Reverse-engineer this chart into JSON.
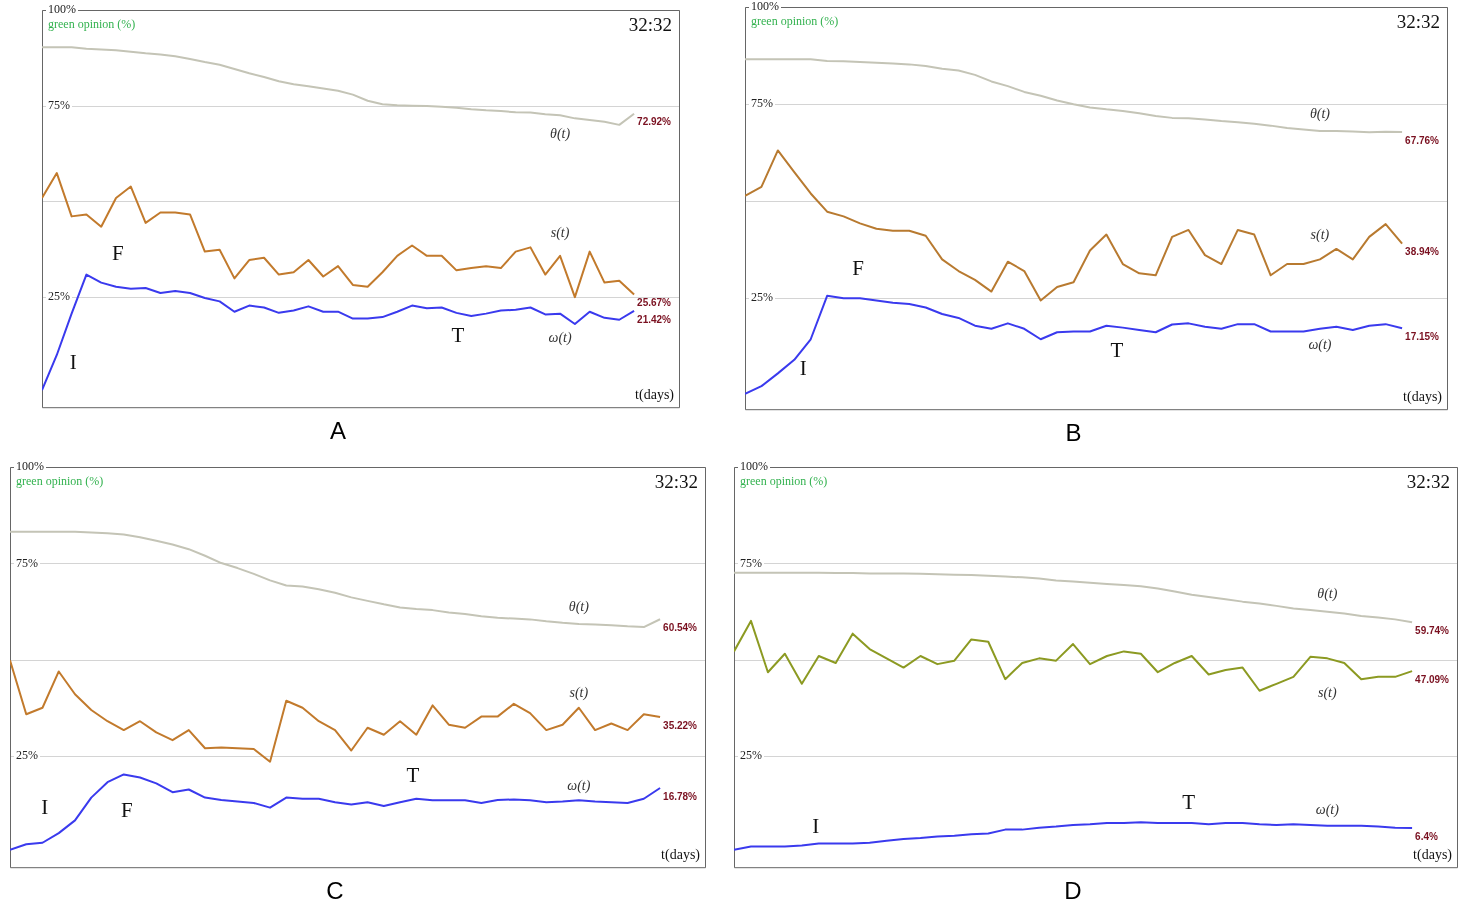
{
  "chart_data": [
    {
      "type": "line",
      "title": "A",
      "xlabel": "t(days)",
      "ylabel": "green opinion (%)",
      "tick_labels": "y",
      "grid": "y",
      "marker": "none",
      "ylim": [
        -4,
        100
      ],
      "yticks": [
        {
          "value": 100,
          "label": "100%"
        },
        {
          "value": 75,
          "label": "75%"
        },
        {
          "value": 50,
          "label": null
        },
        {
          "value": 25,
          "label": "25%"
        }
      ],
      "annotations": [
        "32:32",
        "I",
        "F",
        "T"
      ],
      "categories": [
        null,
        null,
        null,
        null,
        null,
        null,
        null,
        null,
        null,
        null,
        null,
        null,
        null,
        null,
        null,
        null,
        null,
        null,
        null,
        null,
        null,
        null,
        null,
        null,
        null,
        null,
        null,
        null,
        null,
        null,
        null,
        null,
        null,
        null,
        null,
        null,
        null,
        null,
        null,
        null,
        null
      ],
      "series": [
        {
          "name": "θ(t)",
          "color": "#c4c4b6",
          "values": [
            90.3,
            90.3,
            90.3,
            89.9,
            89.7,
            89.5,
            89.1,
            88.7,
            88.4,
            87.9,
            87.2,
            86.4,
            85.7,
            84.6,
            83.5,
            82.5,
            81.4,
            80.6,
            80.1,
            79.5,
            78.9,
            77.9,
            76.3,
            75.4,
            75.1,
            75,
            74.9,
            74.7,
            74.5,
            74.1,
            73.8,
            73.6,
            73.3,
            73.2,
            72.8,
            72.5,
            71.7,
            71.3,
            70.8,
            70,
            72.92
          ],
          "value_labels": [
            null,
            null,
            null,
            null,
            null,
            null,
            null,
            null,
            null,
            null,
            null,
            null,
            null,
            null,
            null,
            null,
            null,
            null,
            null,
            null,
            null,
            null,
            null,
            null,
            null,
            null,
            null,
            null,
            null,
            null,
            null,
            null,
            null,
            null,
            null,
            null,
            null,
            null,
            null,
            null,
            "72.92%"
          ]
        },
        {
          "name": "s(t)",
          "color": "#c27a2c",
          "values": [
            50.9,
            57.4,
            46.1,
            46.6,
            43.4,
            50.9,
            53.9,
            44.4,
            47.1,
            47.1,
            46.6,
            36.9,
            37.4,
            29.9,
            34.7,
            35.3,
            30.9,
            31.5,
            34.7,
            30.4,
            33.1,
            28.2,
            27.7,
            31.5,
            35.8,
            38.5,
            35.8,
            35.8,
            32,
            32.6,
            33.1,
            32.6,
            36.9,
            38,
            30.9,
            35.8,
            25,
            36.9,
            28.8,
            29.3,
            25.67
          ],
          "value_labels": [
            null,
            null,
            null,
            null,
            null,
            null,
            null,
            null,
            null,
            null,
            null,
            null,
            null,
            null,
            null,
            null,
            null,
            null,
            null,
            null,
            null,
            null,
            null,
            null,
            null,
            null,
            null,
            null,
            null,
            null,
            null,
            null,
            null,
            null,
            null,
            null,
            null,
            null,
            null,
            null,
            "25.67%"
          ]
        },
        {
          "name": "ω(t)",
          "color": "#3a3aee",
          "values": [
            0.7,
            9.9,
            20.7,
            30.9,
            28.8,
            27.7,
            27.2,
            27.4,
            26.1,
            26.6,
            26.1,
            24.8,
            23.9,
            21.2,
            22.8,
            22.3,
            20.9,
            21.5,
            22.6,
            21.2,
            21.2,
            19.4,
            19.4,
            19.8,
            21.2,
            22.8,
            22.1,
            22.3,
            20.9,
            20.1,
            20.7,
            21.5,
            21.7,
            22.3,
            20.5,
            20.7,
            18,
            21.2,
            19.6,
            19.1,
            21.42
          ],
          "value_labels": [
            null,
            null,
            null,
            null,
            null,
            null,
            null,
            null,
            null,
            null,
            null,
            null,
            null,
            null,
            null,
            null,
            null,
            null,
            null,
            null,
            null,
            null,
            null,
            null,
            null,
            null,
            null,
            null,
            null,
            null,
            null,
            null,
            null,
            null,
            null,
            null,
            null,
            null,
            null,
            null,
            "21.42%"
          ]
        }
      ]
    },
    {
      "type": "line",
      "title": "B",
      "xlabel": "t(days)",
      "ylabel": "green opinion (%)",
      "tick_labels": "y",
      "grid": "y",
      "marker": "none",
      "ylim": [
        -4,
        100
      ],
      "yticks": [
        {
          "value": 100,
          "label": "100%"
        },
        {
          "value": 75,
          "label": "75%"
        },
        {
          "value": 50,
          "label": null
        },
        {
          "value": 25,
          "label": "25%"
        }
      ],
      "annotations": [
        "32:32",
        "I",
        "F",
        "T"
      ],
      "categories": [
        null,
        null,
        null,
        null,
        null,
        null,
        null,
        null,
        null,
        null,
        null,
        null,
        null,
        null,
        null,
        null,
        null,
        null,
        null,
        null,
        null,
        null,
        null,
        null,
        null,
        null,
        null,
        null,
        null,
        null,
        null,
        null,
        null,
        null,
        null,
        null,
        null,
        null,
        null,
        null,
        null
      ],
      "series": [
        {
          "name": "θ(t)",
          "color": "#c4c4b6",
          "values": [
            86.5,
            86.5,
            86.5,
            86.5,
            86.5,
            86.1,
            86,
            85.8,
            85.6,
            85.4,
            85.2,
            84.8,
            84.1,
            83.6,
            82.5,
            80.8,
            79.6,
            78.1,
            77.1,
            75.9,
            74.9,
            74.1,
            73.6,
            73.2,
            72.6,
            71.9,
            71.4,
            71.3,
            71,
            70.6,
            70.3,
            69.9,
            69.4,
            68.8,
            68.4,
            68,
            68,
            67.9,
            67.7,
            67.8,
            67.76
          ],
          "value_labels": [
            null,
            null,
            null,
            null,
            null,
            null,
            null,
            null,
            null,
            null,
            null,
            null,
            null,
            null,
            null,
            null,
            null,
            null,
            null,
            null,
            null,
            null,
            null,
            null,
            null,
            null,
            null,
            null,
            null,
            null,
            null,
            null,
            null,
            null,
            null,
            null,
            null,
            null,
            null,
            null,
            "67.76%"
          ]
        },
        {
          "name": "s(t)",
          "color": "#b87a30",
          "values": [
            51.3,
            53.6,
            63,
            57.4,
            51.9,
            47.2,
            46,
            44.2,
            42.8,
            42.3,
            42.3,
            41,
            34.9,
            31.9,
            29.6,
            26.6,
            34.3,
            31.9,
            24.3,
            27.8,
            29,
            37.2,
            41.3,
            33.7,
            31.3,
            30.8,
            40.7,
            42.5,
            36,
            33.7,
            42.5,
            41.3,
            30.8,
            33.7,
            33.7,
            34.9,
            37.6,
            34.9,
            40.7,
            44,
            38.94
          ],
          "value_labels": [
            null,
            null,
            null,
            null,
            null,
            null,
            null,
            null,
            null,
            null,
            null,
            null,
            null,
            null,
            null,
            null,
            null,
            null,
            null,
            null,
            null,
            null,
            null,
            null,
            null,
            null,
            null,
            null,
            null,
            null,
            null,
            null,
            null,
            null,
            null,
            null,
            null,
            null,
            null,
            null,
            "38.94%"
          ]
        },
        {
          "name": "ω(t)",
          "color": "#3a3aee",
          "values": [
            0.2,
            2.2,
            5.5,
            9,
            14.3,
            25.5,
            24.9,
            24.9,
            24.3,
            23.7,
            23.4,
            22.5,
            20.8,
            19.8,
            17.8,
            17,
            18.4,
            17,
            14.3,
            16.1,
            16.3,
            16.3,
            17.8,
            17.3,
            16.7,
            16.1,
            18.1,
            18.4,
            17.5,
            17,
            18.2,
            18.2,
            16.3,
            16.3,
            16.3,
            17,
            17.5,
            16.7,
            17.8,
            18.2,
            17.15
          ],
          "value_labels": [
            null,
            null,
            null,
            null,
            null,
            null,
            null,
            null,
            null,
            null,
            null,
            null,
            null,
            null,
            null,
            null,
            null,
            null,
            null,
            null,
            null,
            null,
            null,
            null,
            null,
            null,
            null,
            null,
            null,
            null,
            null,
            null,
            null,
            null,
            null,
            null,
            null,
            null,
            null,
            null,
            "17.15%"
          ]
        }
      ]
    },
    {
      "type": "line",
      "title": "C",
      "xlabel": "t(days)",
      "ylabel": "green opinion (%)",
      "tick_labels": "y",
      "grid": "y",
      "marker": "none",
      "ylim": [
        -4,
        100
      ],
      "yticks": [
        {
          "value": 100,
          "label": "100%"
        },
        {
          "value": 75,
          "label": "75%"
        },
        {
          "value": 50,
          "label": null
        },
        {
          "value": 25,
          "label": "25%"
        }
      ],
      "annotations": [
        "32:32",
        "I",
        "F",
        "T"
      ],
      "categories": [
        null,
        null,
        null,
        null,
        null,
        null,
        null,
        null,
        null,
        null,
        null,
        null,
        null,
        null,
        null,
        null,
        null,
        null,
        null,
        null,
        null,
        null,
        null,
        null,
        null,
        null,
        null,
        null,
        null,
        null,
        null,
        null,
        null,
        null,
        null,
        null,
        null,
        null,
        null,
        null,
        null
      ],
      "series": [
        {
          "name": "θ(t)",
          "color": "#c4c4b6",
          "values": [
            83.2,
            83.2,
            83.2,
            83.2,
            83.2,
            83,
            82.8,
            82.5,
            81.8,
            80.9,
            79.9,
            78.7,
            77,
            75.1,
            73.8,
            72.3,
            70.6,
            69.3,
            69,
            68.3,
            67.4,
            66.2,
            65.3,
            64.4,
            63.6,
            63.2,
            62.9,
            62.3,
            61.9,
            61.3,
            60.9,
            60.7,
            60.5,
            60,
            59.6,
            59.3,
            59.2,
            59,
            58.7,
            58.5,
            60.54
          ],
          "value_labels": [
            null,
            null,
            null,
            null,
            null,
            null,
            null,
            null,
            null,
            null,
            null,
            null,
            null,
            null,
            null,
            null,
            null,
            null,
            null,
            null,
            null,
            null,
            null,
            null,
            null,
            null,
            null,
            null,
            null,
            null,
            null,
            null,
            null,
            null,
            null,
            null,
            null,
            null,
            null,
            null,
            "60.54%"
          ]
        },
        {
          "name": "s(t)",
          "color": "#c27a2c",
          "values": [
            49.9,
            35.9,
            37.6,
            47,
            41.1,
            37,
            34.1,
            31.8,
            34.1,
            31.2,
            29.2,
            31.8,
            27.1,
            27.3,
            27.1,
            26.9,
            23.6,
            39.4,
            37.6,
            34.1,
            31.8,
            26.5,
            32.4,
            30.6,
            34.1,
            30.6,
            38.2,
            33.2,
            32.4,
            35.3,
            35.3,
            38.6,
            36.2,
            31.8,
            33.2,
            37.6,
            31.8,
            33.5,
            31.8,
            35.9,
            35.22
          ],
          "value_labels": [
            null,
            null,
            null,
            null,
            null,
            null,
            null,
            null,
            null,
            null,
            null,
            null,
            null,
            null,
            null,
            null,
            null,
            null,
            null,
            null,
            null,
            null,
            null,
            null,
            null,
            null,
            null,
            null,
            null,
            null,
            null,
            null,
            null,
            null,
            null,
            null,
            null,
            null,
            null,
            null,
            "35.22%"
          ]
        },
        {
          "name": "ω(t)",
          "color": "#3a3aee",
          "values": [
            0.8,
            2.2,
            2.6,
            5.1,
            8.4,
            14.3,
            18.3,
            20.3,
            19.5,
            18,
            15.7,
            16.4,
            14.3,
            13.7,
            13.3,
            12.9,
            11.7,
            14.3,
            14,
            14,
            13.1,
            12.5,
            13.1,
            12.1,
            13.1,
            14,
            13.6,
            13.6,
            13.6,
            12.9,
            13.7,
            13.8,
            13.6,
            13.1,
            13.3,
            13.6,
            13.3,
            13.1,
            12.9,
            14,
            16.78
          ],
          "value_labels": [
            null,
            null,
            null,
            null,
            null,
            null,
            null,
            null,
            null,
            null,
            null,
            null,
            null,
            null,
            null,
            null,
            null,
            null,
            null,
            null,
            null,
            null,
            null,
            null,
            null,
            null,
            null,
            null,
            null,
            null,
            null,
            null,
            null,
            null,
            null,
            null,
            null,
            null,
            null,
            null,
            "16.78%"
          ]
        }
      ]
    },
    {
      "type": "line",
      "title": "D",
      "xlabel": "t(days)",
      "ylabel": "green opinion (%)",
      "tick_labels": "y",
      "grid": "y",
      "marker": "none",
      "ylim": [
        -4,
        100
      ],
      "yticks": [
        {
          "value": 100,
          "label": "100%"
        },
        {
          "value": 75,
          "label": "75%"
        },
        {
          "value": 50,
          "label": null
        },
        {
          "value": 25,
          "label": "25%"
        }
      ],
      "annotations": [
        "32:32",
        "I",
        "T"
      ],
      "categories": [
        null,
        null,
        null,
        null,
        null,
        null,
        null,
        null,
        null,
        null,
        null,
        null,
        null,
        null,
        null,
        null,
        null,
        null,
        null,
        null,
        null,
        null,
        null,
        null,
        null,
        null,
        null,
        null,
        null,
        null,
        null,
        null,
        null,
        null,
        null,
        null,
        null,
        null,
        null,
        null,
        null
      ],
      "series": [
        {
          "name": "θ(t)",
          "color": "#c4c4b6",
          "values": [
            72.6,
            72.6,
            72.6,
            72.6,
            72.6,
            72.6,
            72.5,
            72.5,
            72.4,
            72.4,
            72.4,
            72.3,
            72.2,
            72.1,
            72,
            71.8,
            71.6,
            71.4,
            71.1,
            70.6,
            70.3,
            70,
            69.7,
            69.4,
            69.1,
            68.5,
            67.7,
            66.9,
            66.3,
            65.7,
            65.1,
            64.6,
            64,
            63.3,
            62.9,
            62.5,
            62,
            61.4,
            61,
            60.5,
            59.74
          ],
          "value_labels": [
            null,
            null,
            null,
            null,
            null,
            null,
            null,
            null,
            null,
            null,
            null,
            null,
            null,
            null,
            null,
            null,
            null,
            null,
            null,
            null,
            null,
            null,
            null,
            null,
            null,
            null,
            null,
            null,
            null,
            null,
            null,
            null,
            null,
            null,
            null,
            null,
            null,
            null,
            null,
            null,
            "59.74%"
          ]
        },
        {
          "name": "s(t)",
          "color": "#8c9a22",
          "values": [
            52.2,
            60.1,
            46.8,
            51.6,
            43.8,
            51,
            49.2,
            56.8,
            52.8,
            50.4,
            48,
            51,
            48.9,
            49.8,
            55.3,
            54.7,
            45,
            49.2,
            50.4,
            49.8,
            54.1,
            48.9,
            51,
            52.2,
            51.6,
            46.8,
            49.2,
            51,
            46.2,
            47.4,
            48,
            42,
            43.8,
            45.6,
            50.8,
            50.4,
            49.2,
            45,
            45.6,
            45.6,
            47.09
          ],
          "value_labels": [
            null,
            null,
            null,
            null,
            null,
            null,
            null,
            null,
            null,
            null,
            null,
            null,
            null,
            null,
            null,
            null,
            null,
            null,
            null,
            null,
            null,
            null,
            null,
            null,
            null,
            null,
            null,
            null,
            null,
            null,
            null,
            null,
            null,
            null,
            null,
            null,
            null,
            null,
            null,
            null,
            "47.09%"
          ]
        },
        {
          "name": "ω(t)",
          "color": "#3a3aee",
          "values": [
            0.8,
            1.6,
            1.6,
            1.6,
            1.9,
            2.4,
            2.4,
            2.4,
            2.6,
            3.1,
            3.6,
            3.8,
            4.2,
            4.4,
            4.8,
            5,
            6,
            6,
            6.5,
            6.8,
            7.2,
            7.4,
            7.7,
            7.7,
            7.9,
            7.7,
            7.7,
            7.7,
            7.4,
            7.7,
            7.7,
            7.4,
            7.2,
            7.4,
            7.2,
            7,
            7,
            7,
            6.8,
            6.5,
            6.4
          ],
          "value_labels": [
            null,
            null,
            null,
            null,
            null,
            null,
            null,
            null,
            null,
            null,
            null,
            null,
            null,
            null,
            null,
            null,
            null,
            null,
            null,
            null,
            null,
            null,
            null,
            null,
            null,
            null,
            null,
            null,
            null,
            null,
            null,
            null,
            null,
            null,
            null,
            null,
            null,
            null,
            null,
            null,
            "6.4%"
          ]
        }
      ]
    }
  ]
}
